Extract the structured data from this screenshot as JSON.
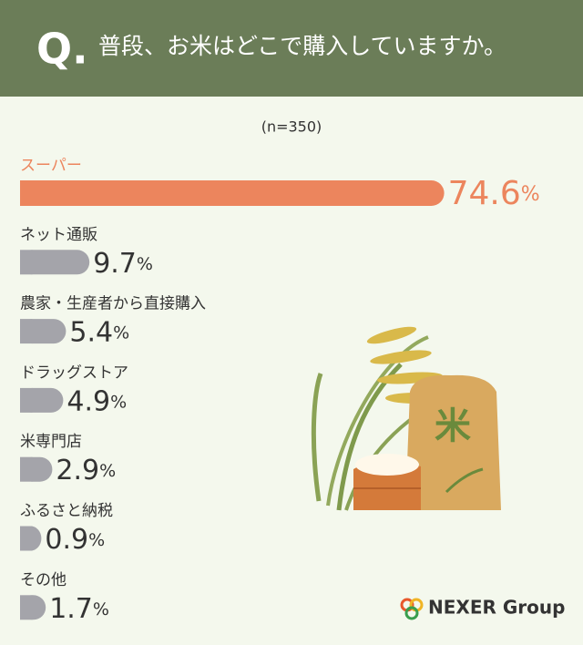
{
  "header": {
    "q": "Q.",
    "title": "普段、お米はどこで購入していますか。"
  },
  "chart_data": {
    "type": "bar",
    "subtitle": "(n=350)",
    "categories": [
      "スーパー",
      "ネット通販",
      "農家・生産者から直接購入",
      "ドラッグストア",
      "米専門店",
      "ふるさと納税",
      "その他"
    ],
    "values": [
      74.6,
      9.7,
      5.4,
      4.9,
      2.9,
      0.9,
      1.7
    ],
    "value_labels": [
      "74.6%",
      "9.7%",
      "5.4%",
      "4.9%",
      "2.9%",
      "0.9%",
      "1.7%"
    ],
    "colors": [
      "#ec855d",
      "#a4a4aa",
      "#a4a4aa",
      "#a4a4aa",
      "#a4a4aa",
      "#a4a4aa",
      "#a4a4aa"
    ]
  },
  "illustration": {
    "bag_text": "米"
  },
  "logo": {
    "text": "NEXER Group"
  }
}
